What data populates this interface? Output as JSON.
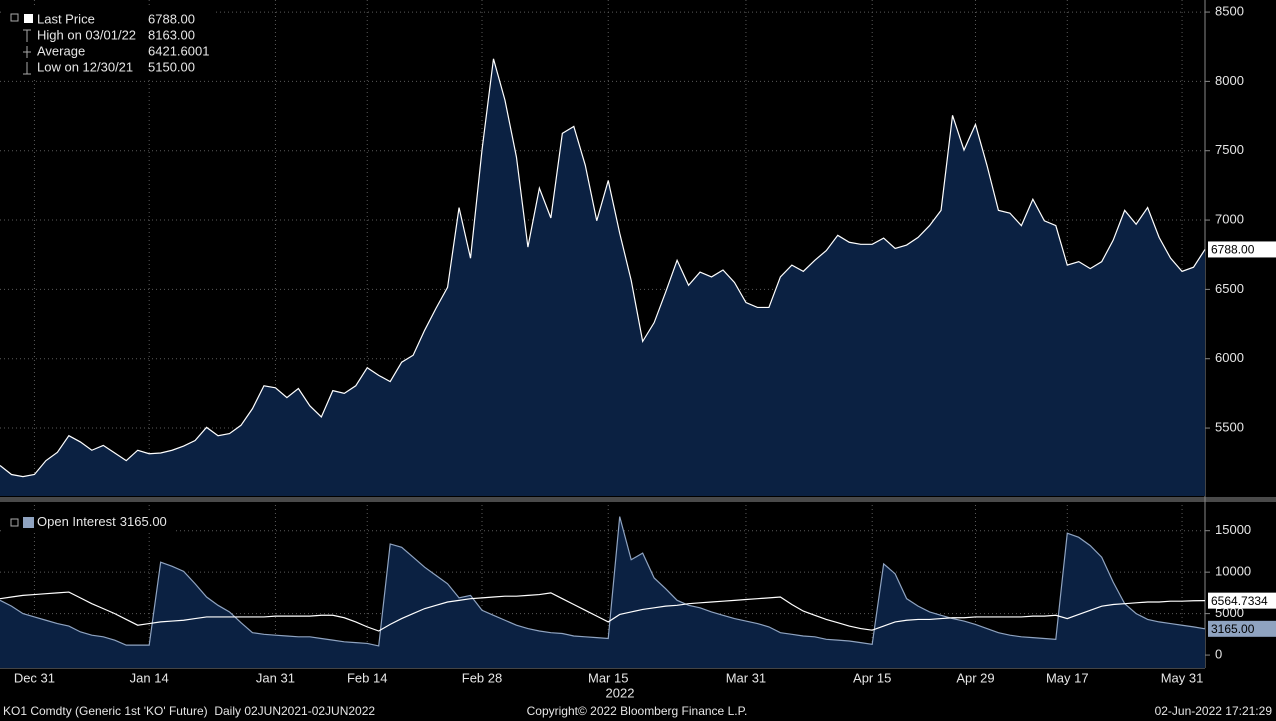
{
  "chart_data": [
    {
      "type": "area",
      "ylim": [
        5010,
        8587
      ],
      "yticks": [
        5500,
        6000,
        6500,
        7000,
        7500,
        8000,
        8500
      ],
      "grid": true,
      "series": [
        {
          "name": "Last Price",
          "type": "area",
          "color": "#ffffff",
          "fill": "#0b2142",
          "last_value_label": "6788.00",
          "values": [
            5230,
            5165,
            5150,
            5165,
            5265,
            5325,
            5445,
            5400,
            5340,
            5375,
            5320,
            5265,
            5340,
            5315,
            5320,
            5340,
            5370,
            5410,
            5505,
            5445,
            5460,
            5520,
            5640,
            5805,
            5790,
            5720,
            5785,
            5660,
            5580,
            5770,
            5750,
            5805,
            5935,
            5880,
            5835,
            5975,
            6025,
            6205,
            6365,
            6515,
            7090,
            6725,
            7505,
            8163,
            7865,
            7455,
            6805,
            7230,
            7015,
            7625,
            7675,
            7395,
            6995,
            7285,
            6905,
            6565,
            6125,
            6260,
            6480,
            6710,
            6530,
            6625,
            6590,
            6640,
            6550,
            6405,
            6370,
            6370,
            6590,
            6675,
            6630,
            6710,
            6780,
            6890,
            6840,
            6825,
            6825,
            6870,
            6795,
            6820,
            6875,
            6960,
            7070,
            7755,
            7505,
            7690,
            7395,
            7070,
            7050,
            6960,
            7150,
            6995,
            6960,
            6675,
            6700,
            6650,
            6700,
            6855,
            7070,
            6970,
            7090,
            6875,
            6725,
            6630,
            6660,
            6788
          ]
        }
      ],
      "stats": [
        {
          "label": "High on 03/01/22",
          "value": "8163.00"
        },
        {
          "label": "Average",
          "value": "6421.6001"
        },
        {
          "label": "Low on 12/30/21",
          "value": "5150.00"
        }
      ]
    },
    {
      "type": "area",
      "ylim": [
        -1560,
        18100
      ],
      "yticks": [
        0,
        5000,
        10000,
        15000
      ],
      "grid": true,
      "categories": [
        null,
        null,
        null,
        "Dec 31",
        null,
        null,
        null,
        null,
        null,
        null,
        null,
        null,
        null,
        "Jan 14",
        null,
        null,
        null,
        null,
        null,
        null,
        null,
        null,
        null,
        null,
        "Jan 31",
        null,
        null,
        null,
        null,
        null,
        null,
        null,
        "Feb 14",
        null,
        null,
        null,
        null,
        null,
        null,
        null,
        null,
        null,
        "Feb 28",
        null,
        null,
        null,
        null,
        null,
        null,
        null,
        null,
        null,
        null,
        "Mar 15",
        null,
        null,
        null,
        null,
        null,
        null,
        null,
        null,
        null,
        null,
        null,
        "Mar 31",
        null,
        null,
        null,
        null,
        null,
        null,
        null,
        null,
        null,
        null,
        "Apr 15",
        null,
        null,
        null,
        null,
        null,
        null,
        null,
        null,
        "Apr 29",
        null,
        null,
        null,
        null,
        null,
        null,
        null,
        "May 17",
        null,
        null,
        null,
        null,
        null,
        null,
        null,
        null,
        null,
        "May 31",
        null,
        null
      ],
      "year_label": "2022",
      "series": [
        {
          "name": "Open Interest",
          "type": "area",
          "color": "#8fa3c0",
          "fill": "#0b2142",
          "last_value_label": "3165.00",
          "values": [
            6600,
            5900,
            5000,
            4600,
            4200,
            3800,
            3500,
            2800,
            2400,
            2200,
            1800,
            1200,
            1200,
            1200,
            11200,
            10700,
            10100,
            8600,
            7000,
            6000,
            5200,
            3900,
            2700,
            2500,
            2400,
            2300,
            2200,
            2200,
            2000,
            1800,
            1600,
            1500,
            1400,
            1100,
            13400,
            13000,
            11800,
            10600,
            9600,
            8600,
            6900,
            7200,
            5400,
            4800,
            4200,
            3600,
            3200,
            2900,
            2700,
            2600,
            2300,
            2200,
            2100,
            2000,
            16700,
            11500,
            12300,
            9300,
            8000,
            6600,
            6000,
            5700,
            5200,
            4800,
            4400,
            4100,
            3800,
            3400,
            2700,
            2500,
            2300,
            2200,
            1900,
            1800,
            1700,
            1500,
            1300,
            11000,
            9800,
            6800,
            5900,
            5200,
            4800,
            4400,
            4100,
            3700,
            3200,
            2700,
            2400,
            2200,
            2100,
            2000,
            1900,
            14700,
            14200,
            13200,
            11800,
            8800,
            6200,
            5000,
            4300,
            4000,
            3800,
            3600,
            3400,
            3165
          ]
        },
        {
          "type": "line",
          "color": "#ffffff",
          "last_value_label": "6564.7334",
          "values": [
            6800,
            7000,
            7200,
            7300,
            7400,
            7500,
            7600,
            6900,
            6200,
            5600,
            5000,
            4300,
            3600,
            3800,
            4000,
            4100,
            4200,
            4400,
            4600,
            4600,
            4600,
            4600,
            4600,
            4600,
            4700,
            4700,
            4700,
            4700,
            4800,
            4800,
            4500,
            4000,
            3400,
            2900,
            3700,
            4400,
            5000,
            5600,
            6000,
            6400,
            6600,
            6800,
            6900,
            7000,
            7100,
            7100,
            7200,
            7300,
            7500,
            6800,
            6100,
            5400,
            4700,
            4000,
            4900,
            5200,
            5500,
            5700,
            5900,
            6000,
            6200,
            6300,
            6400,
            6500,
            6600,
            6700,
            6800,
            6900,
            7000,
            6100,
            5300,
            4800,
            4300,
            3900,
            3500,
            3200,
            3000,
            3500,
            4000,
            4200,
            4300,
            4300,
            4400,
            4500,
            4500,
            4600,
            4600,
            4600,
            4600,
            4600,
            4700,
            4700,
            4800,
            4400,
            4900,
            5400,
            5900,
            6100,
            6200,
            6300,
            6400,
            6400,
            6500,
            6500,
            6550,
            6564.7334
          ]
        }
      ]
    }
  ],
  "footer": {
    "left": "KO1 Comdty (Generic 1st 'KO' Future)  Daily 02JUN2021-02JUN2022",
    "center": "Copyright© 2022 Bloomberg Finance L.P.",
    "right": "02-Jun-2022 17:21:29"
  }
}
